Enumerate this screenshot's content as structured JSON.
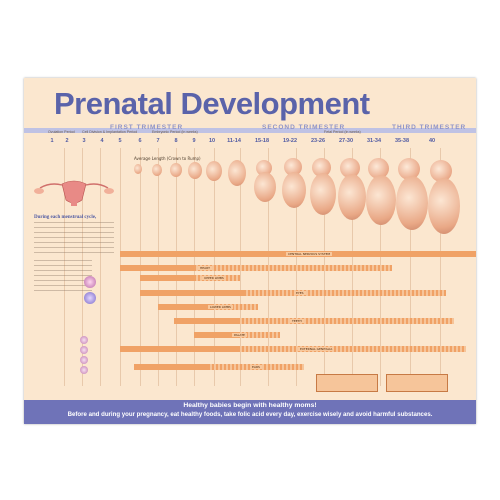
{
  "title": "Prenatal Development",
  "trimesters": [
    "FIRST TRIMESTER",
    "SECOND TRIMESTER",
    "THIRD TRIMESTER"
  ],
  "periods": [
    "Ovulation Period",
    "Cell Division & Implantation Period",
    "Embryonic Period (in weeks)",
    "Fetal Period (in weeks)"
  ],
  "weeks": [
    "1",
    "2",
    "3",
    "4",
    "5",
    "6",
    "7",
    "8",
    "9",
    "10",
    "11-14",
    "15-18",
    "19-22",
    "23-26",
    "27-30",
    "31-34",
    "35-38",
    "40"
  ],
  "average_length_label": "Average Length (Crown to Rump)",
  "sidebar_intro": "During each menstrual cycle,",
  "bar_labels": [
    "CENTRAL NERVOUS SYSTEM",
    "HEART",
    "UPPER LIMBS",
    "EYES",
    "LOWER LIMBS",
    "TEETH",
    "EXTERNAL GENITALIA",
    "EARS",
    "PALATE"
  ],
  "tagline": "Healthy babies begin with healthy moms!",
  "advice": "Before and during your pregnancy, eat healthy foods, take folic acid every day, exercise wisely and avoid harmful substances.",
  "colors": {
    "brand": "#5a63aa",
    "band": "#6f73b8",
    "bar": "#f0a266",
    "background": "#fbe7cf"
  }
}
